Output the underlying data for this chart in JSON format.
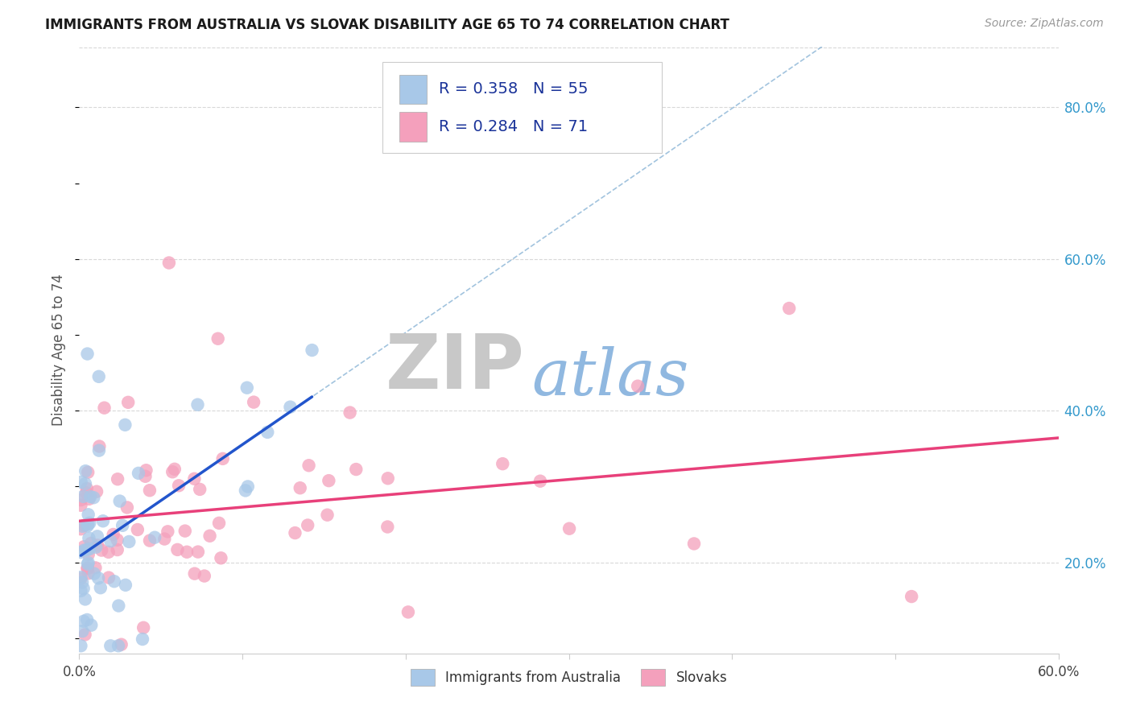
{
  "title": "IMMIGRANTS FROM AUSTRALIA VS SLOVAK DISABILITY AGE 65 TO 74 CORRELATION CHART",
  "source": "Source: ZipAtlas.com",
  "ylabel": "Disability Age 65 to 74",
  "xlim": [
    0.0,
    0.6
  ],
  "ylim": [
    0.08,
    0.88
  ],
  "xticks": [
    0.0,
    0.1,
    0.2,
    0.3,
    0.4,
    0.5,
    0.6
  ],
  "xticklabels": [
    "0.0%",
    "",
    "",
    "",
    "",
    "",
    "60.0%"
  ],
  "yticks_right": [
    0.2,
    0.4,
    0.6,
    0.8
  ],
  "ytick_right_labels": [
    "20.0%",
    "40.0%",
    "60.0%",
    "80.0%"
  ],
  "r_australia": 0.358,
  "n_australia": 55,
  "r_slovak": 0.284,
  "n_slovak": 71,
  "australia_color": "#a8c8e8",
  "slovak_color": "#f4a0bc",
  "australia_line_color": "#2255cc",
  "slovak_line_color": "#e8407a",
  "ref_line_color": "#7aaad0",
  "background_color": "#ffffff",
  "grid_color": "#d8d8d8",
  "zip_watermark_color": "#c8c8c8",
  "atlas_watermark_color": "#90b8e0",
  "legend_australia": "Immigrants from Australia",
  "legend_slovak": "Slovaks",
  "legend_text_color": "#1a3399",
  "title_color": "#1a1a1a",
  "source_color": "#999999",
  "ylabel_color": "#555555",
  "right_tick_color": "#3399cc"
}
